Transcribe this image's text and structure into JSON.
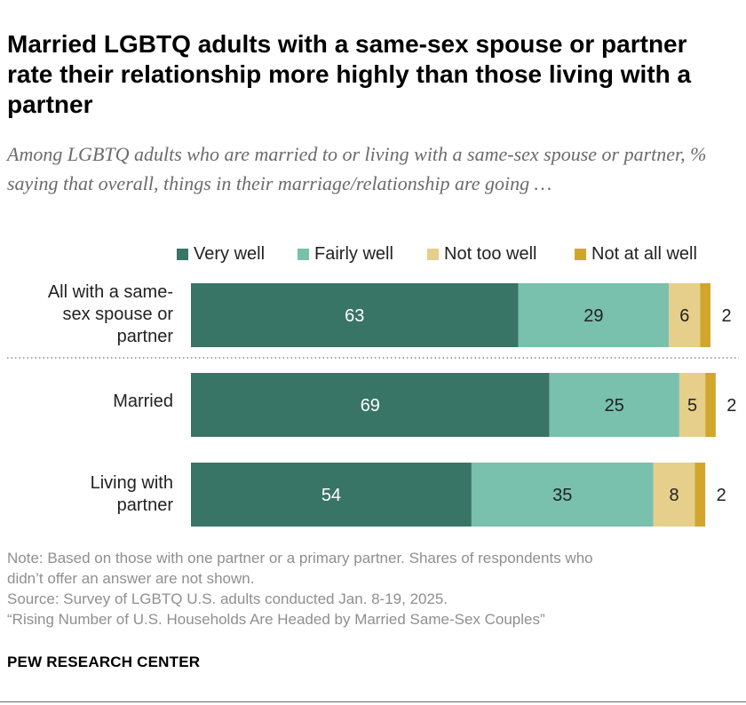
{
  "title": "Married LGBTQ adults with a same-sex spouse or partner rate their relationship more highly than those living with a partner",
  "subtitle": "Among LGBTQ adults who are married to or living with a same-sex spouse or partner, % saying that overall, things in their marriage/relationship are going …",
  "chart_data": {
    "type": "bar",
    "orientation": "horizontal",
    "stacked": true,
    "categories": [
      [
        "All with a same-",
        "sex spouse or",
        "partner"
      ],
      [
        "Married"
      ],
      [
        "Living with",
        "partner"
      ]
    ],
    "series": [
      {
        "name": "Very well",
        "color": "#387566",
        "label_color": "#ffffff",
        "values": [
          63,
          69,
          54
        ]
      },
      {
        "name": "Fairly well",
        "color": "#79c0ad",
        "label_color": "#222222",
        "values": [
          29,
          25,
          35
        ]
      },
      {
        "name": "Not too well",
        "color": "#e6cf8b",
        "label_color": "#222222",
        "values": [
          6,
          5,
          8
        ]
      },
      {
        "name": "Not at all well",
        "color": "#d2a52c",
        "label_color": "#222222",
        "values": [
          2,
          2,
          2
        ]
      }
    ],
    "xlim": [
      0,
      100
    ],
    "legend_position": "top",
    "separator_after_row": 0
  },
  "note": {
    "lines": [
      "Note: Based on those with one partner or a primary partner. Shares of respondents who",
      "didn’t offer an answer are not shown.",
      "Source: Survey of LGBTQ U.S. adults conducted Jan. 8-19, 2025.",
      "“Rising Number of U.S. Households Are Headed by Married Same-Sex Couples”"
    ]
  },
  "brand": "PEW RESEARCH CENTER"
}
